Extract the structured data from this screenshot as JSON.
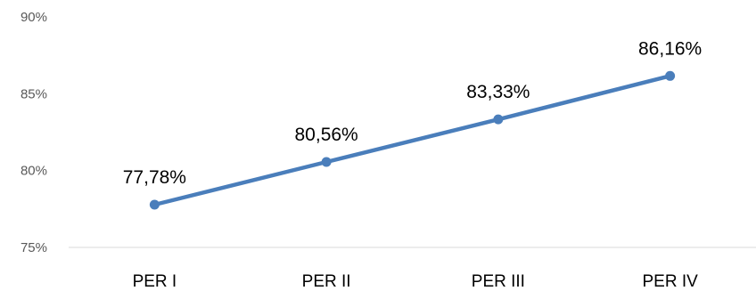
{
  "chart_data": {
    "type": "line",
    "title": "",
    "xlabel": "",
    "ylabel": "",
    "categories": [
      "PER I",
      "PER II",
      "PER III",
      "PER IV"
    ],
    "series": [
      {
        "values": [
          77.78,
          80.56,
          83.33,
          86.16
        ],
        "data_labels": [
          "77,78%",
          "80,56%",
          "83,33%",
          "86,16%"
        ],
        "color": "#4A7EBB"
      }
    ],
    "y_ticks": [
      "75%",
      "80%",
      "85%",
      "90%"
    ],
    "ylim": [
      75,
      90
    ],
    "grid": false,
    "legend": "none",
    "axis_color": "#D9D9D9"
  }
}
